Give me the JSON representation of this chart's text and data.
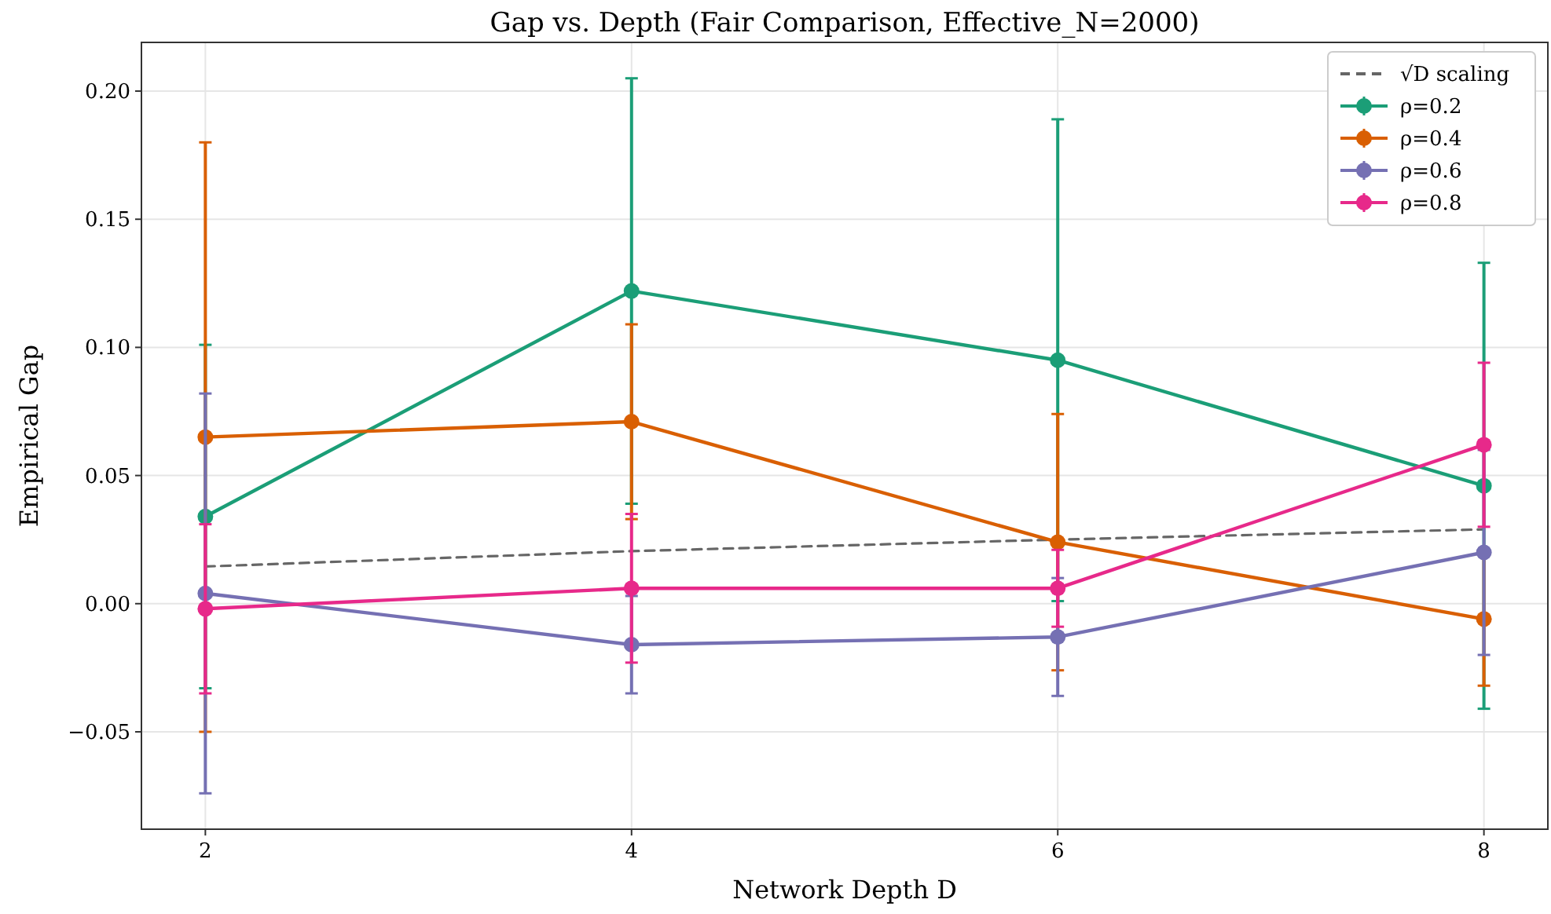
{
  "chart_data": {
    "type": "line",
    "title": "Gap vs. Depth (Fair Comparison, Effective_N=2000)",
    "xlabel": "Network Depth D",
    "ylabel": "Empirical Gap",
    "x": [
      2,
      4,
      6,
      8
    ],
    "series": [
      {
        "name": "√D scaling",
        "color": "#666666",
        "values": [
          0.0145,
          0.0205,
          0.025,
          0.029
        ],
        "line_style": "dashed",
        "marker": "none"
      },
      {
        "name": "ρ=0.2",
        "color": "#1b9e77",
        "values": [
          0.034,
          0.122,
          0.095,
          0.046
        ],
        "errors": [
          0.067,
          0.083,
          0.094,
          0.087
        ]
      },
      {
        "name": "ρ=0.4",
        "color": "#d95f02",
        "values": [
          0.065,
          0.071,
          0.024,
          -0.006
        ],
        "errors": [
          0.115,
          0.038,
          0.05,
          0.026
        ]
      },
      {
        "name": "ρ=0.6",
        "color": "#7570b3",
        "values": [
          0.004,
          -0.016,
          -0.013,
          0.02
        ],
        "errors": [
          0.078,
          0.019,
          0.023,
          0.04
        ]
      },
      {
        "name": "ρ=0.8",
        "color": "#e7298a",
        "values": [
          -0.002,
          0.006,
          0.006,
          0.062
        ],
        "errors": [
          0.033,
          0.029,
          0.015,
          0.032
        ]
      }
    ],
    "xlim": [
      1.7,
      8.3
    ],
    "xticks": [
      2,
      4,
      6,
      8
    ],
    "ylim": [
      -0.088,
      0.219
    ],
    "yticks": [
      {
        "value": -0.05,
        "label": "−0.05"
      },
      {
        "value": 0,
        "label": "0.00"
      },
      {
        "value": 0.05,
        "label": "0.05"
      },
      {
        "value": 0.1,
        "label": "0.10"
      },
      {
        "value": 0.15,
        "label": "0.15"
      },
      {
        "value": 0.2,
        "label": "0.20"
      }
    ],
    "grid": true,
    "legend": "top right",
    "marker": "circle",
    "line_style": "solid"
  }
}
